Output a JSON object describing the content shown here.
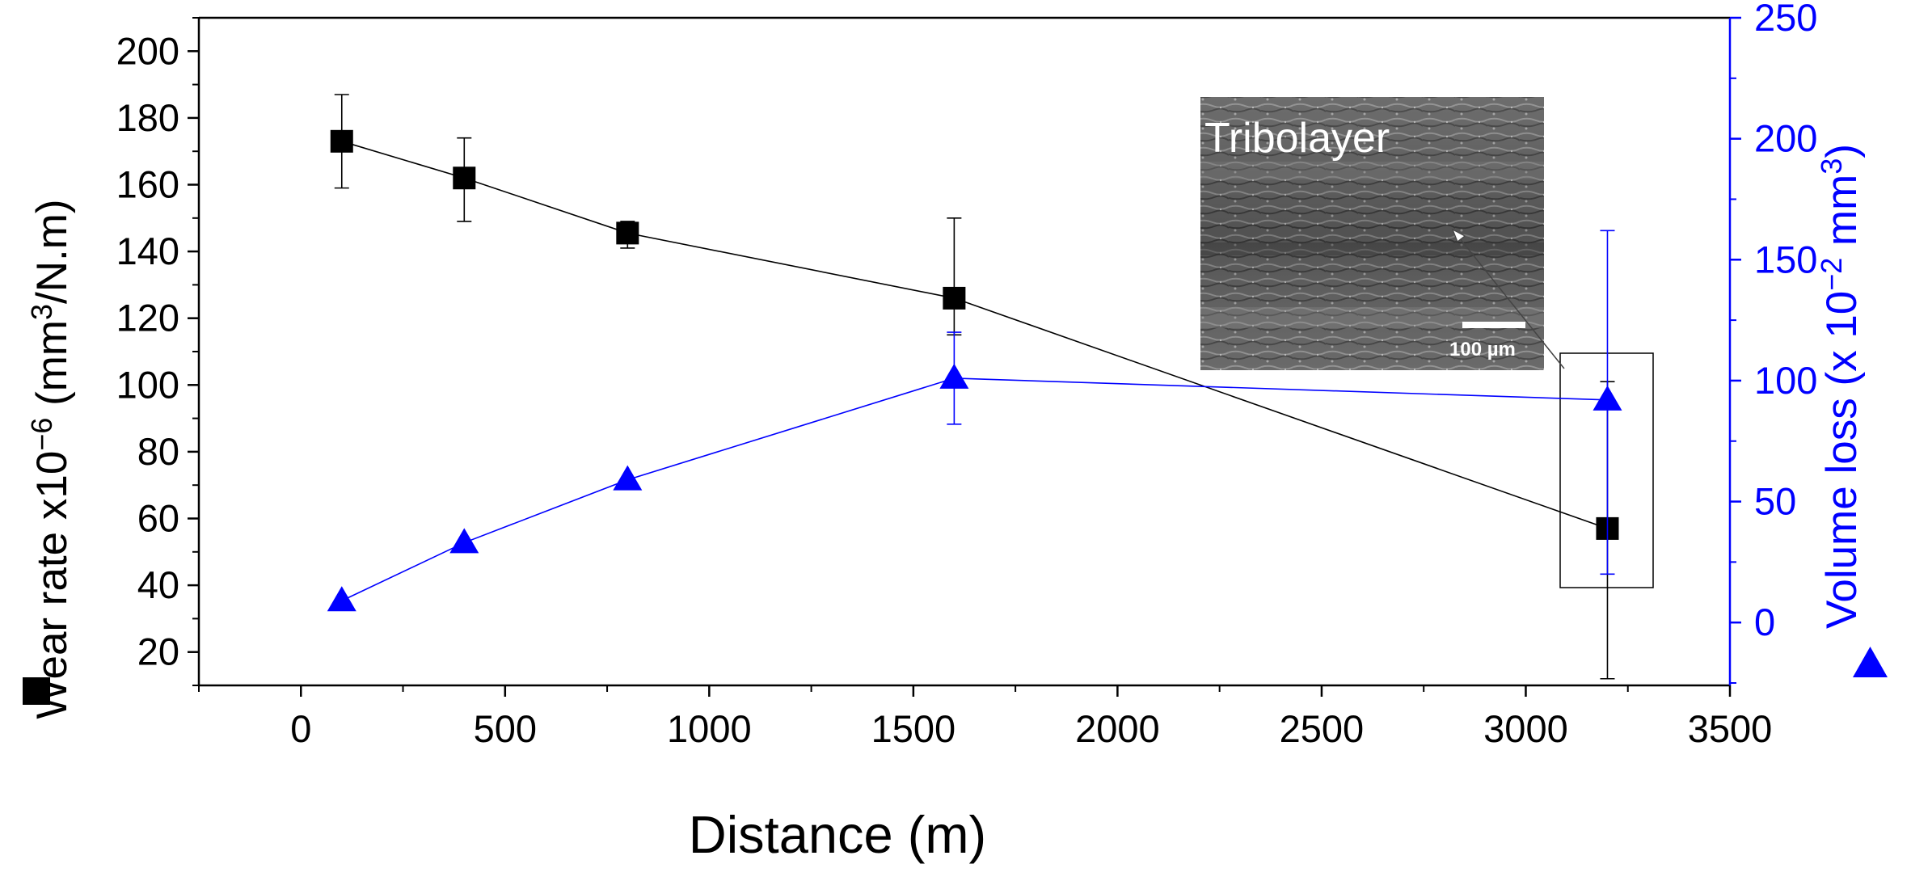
{
  "chart_data": {
    "type": "line",
    "x_axis": {
      "label": "Distance (m)",
      "range": [
        -250,
        3500
      ],
      "ticks": [
        0,
        500,
        1000,
        1500,
        2000,
        2500,
        3000,
        3500
      ],
      "tick_labels": [
        "0",
        "500",
        "1000",
        "1500",
        "2000",
        "2500",
        "3000",
        "3500"
      ]
    },
    "y_axis_left": {
      "label_main": "Wear rate x10",
      "label_exp": "−6",
      "label_unit_a": " (mm",
      "label_unit_exp": "3",
      "label_unit_b": "/N.m)",
      "range": [
        10,
        210
      ],
      "ticks": [
        20,
        40,
        60,
        80,
        100,
        120,
        140,
        160,
        180,
        200
      ],
      "tick_labels": [
        "20",
        "40",
        "60",
        "80",
        "100",
        "120",
        "140",
        "160",
        "180",
        "200"
      ]
    },
    "y_axis_right": {
      "label_main": "Volume loss (x 10",
      "label_exp": "−2",
      "label_unit_a": " mm",
      "label_unit_exp": "3",
      "label_unit_b": ")",
      "range": [
        -26,
        250
      ],
      "ticks": [
        0,
        50,
        100,
        150,
        200,
        250
      ],
      "tick_labels": [
        "0",
        "50",
        "100",
        "150",
        "200",
        "250"
      ]
    },
    "series": [
      {
        "name": "Wear rate",
        "axis": "left",
        "marker": "square",
        "color": "#000000",
        "x": [
          100,
          400,
          800,
          1600,
          3200
        ],
        "y": [
          173,
          162,
          145.5,
          126,
          57
        ],
        "err_low": [
          159,
          149,
          141,
          115,
          12
        ],
        "err_high": [
          187,
          174,
          149,
          150,
          101
        ]
      },
      {
        "name": "Volume loss",
        "axis": "right",
        "marker": "triangle",
        "color": "#0000ff",
        "x": [
          100,
          400,
          800,
          1600,
          3200
        ],
        "y": [
          9,
          33,
          59,
          101,
          92
        ],
        "err_low": [
          9,
          33,
          59,
          82,
          20
        ],
        "err_high": [
          9,
          33,
          59,
          120,
          162
        ]
      }
    ],
    "annotations": {
      "inset_label": "Tribolayer",
      "scale_bar_label": "100 µm"
    }
  },
  "legend_markers": {
    "left_marker": "square",
    "right_marker": "triangle"
  }
}
